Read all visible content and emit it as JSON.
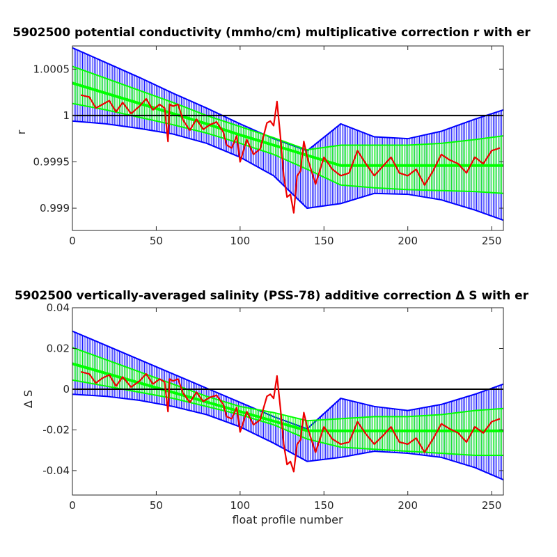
{
  "colors": {
    "outer_error": "#0000ff",
    "inner_error": "#00ff00",
    "data_line": "#ee0000",
    "reference_line": "#000000"
  },
  "chart_data": [
    {
      "type": "line",
      "title": "5902500 potential conductivity (mmho/cm) multiplicative correction r with er",
      "xlabel": "",
      "ylabel": "r",
      "xlim": [
        0,
        257
      ],
      "ylim": [
        0.99876,
        1.00075
      ],
      "xticks": [
        0,
        50,
        100,
        150,
        200,
        250
      ],
      "yticks": [
        0.999,
        0.9995,
        1,
        1.0005
      ],
      "ytick_labels": [
        "0.999",
        "0.9995",
        "1",
        "1.0005"
      ],
      "reference_value": 1,
      "fit_x": [
        0,
        20,
        40,
        60,
        80,
        100,
        120,
        140,
        160,
        180,
        200,
        220,
        240,
        257
      ],
      "fit_y": [
        1.00035,
        1.00024,
        1.00013,
        1.00002,
        0.99991,
        0.99979,
        0.99968,
        0.99957,
        0.99946,
        0.99946,
        0.99946,
        0.99946,
        0.99946,
        0.99946
      ],
      "outer_upper": [
        1.00073,
        1.00057,
        1.00041,
        1.00024,
        1.00008,
        0.99991,
        0.99975,
        0.99962,
        0.99991,
        0.99977,
        0.99975,
        0.99983,
        0.99996,
        1.00006
      ],
      "outer_lower": [
        0.99994,
        0.99991,
        0.99986,
        0.9998,
        0.9997,
        0.99955,
        0.99935,
        0.999,
        0.99905,
        0.99916,
        0.99915,
        0.99909,
        0.99898,
        0.99887
      ],
      "inner_upper": [
        1.00053,
        1.0004,
        1.00027,
        1.00014,
        1.0,
        0.99988,
        0.99976,
        0.99963,
        0.99968,
        0.99968,
        0.99968,
        0.9997,
        0.99974,
        0.99978
      ],
      "inner_lower": [
        1.00013,
        1.00006,
        0.99998,
        0.9999,
        0.99981,
        0.9997,
        0.99958,
        0.99942,
        0.99925,
        0.99922,
        0.9992,
        0.99919,
        0.99918,
        0.99916
      ],
      "series_x": [
        5,
        10,
        14,
        18,
        22,
        26,
        30,
        35,
        40,
        44,
        48,
        52,
        55,
        57,
        58,
        60,
        63,
        66,
        70,
        74,
        78,
        82,
        86,
        90,
        92,
        95,
        98,
        100,
        104,
        108,
        112,
        116,
        118,
        120,
        122,
        124,
        126,
        128,
        130,
        132,
        134,
        136,
        138,
        140,
        145,
        150,
        155,
        160,
        165,
        170,
        175,
        180,
        185,
        190,
        195,
        200,
        205,
        210,
        215,
        220,
        225,
        230,
        235,
        240,
        245,
        250,
        255
      ],
      "series_y": [
        1.00022,
        1.0002,
        1.00008,
        1.00012,
        1.00016,
        1.00004,
        1.00014,
        1.00002,
        1.0001,
        1.00018,
        1.00006,
        1.00012,
        1.00008,
        0.99972,
        1.00012,
        1.0001,
        1.00012,
        0.99995,
        0.99984,
        0.99996,
        0.99985,
        0.9999,
        0.99993,
        0.99982,
        0.99968,
        0.99965,
        0.99978,
        0.9995,
        0.99974,
        0.99958,
        0.99964,
        0.99992,
        0.99994,
        0.99989,
        1.00015,
        0.99978,
        0.99935,
        0.99912,
        0.99915,
        0.99895,
        0.99935,
        0.9994,
        0.99972,
        0.99955,
        0.99926,
        0.99955,
        0.99942,
        0.99935,
        0.99938,
        0.99962,
        0.99948,
        0.99935,
        0.99945,
        0.99955,
        0.99938,
        0.99935,
        0.99942,
        0.99925,
        0.9994,
        0.99958,
        0.99952,
        0.99948,
        0.99938,
        0.99955,
        0.99948,
        0.99962,
        0.99965
      ]
    },
    {
      "type": "line",
      "title": "5902500 vertically-averaged salinity (PSS-78) additive correction Δ S with er",
      "xlabel": "float profile number",
      "ylabel": "Δ S",
      "xlim": [
        0,
        257
      ],
      "ylim": [
        -0.052,
        0.04
      ],
      "xticks": [
        0,
        50,
        100,
        150,
        200,
        250
      ],
      "yticks": [
        -0.04,
        -0.02,
        0,
        0.02,
        0.04
      ],
      "ytick_labels": [
        "-0.04",
        "-0.02",
        "0",
        "0.02",
        "0.04"
      ],
      "reference_value": 0,
      "fit_x": [
        0,
        20,
        40,
        60,
        80,
        100,
        120,
        140,
        160,
        180,
        200,
        220,
        240,
        257
      ],
      "fit_y": [
        0.0125,
        0.0078,
        0.0031,
        -0.0016,
        -0.0063,
        -0.011,
        -0.0157,
        -0.0204,
        -0.0205,
        -0.0205,
        -0.0205,
        -0.0205,
        -0.0205,
        -0.0205
      ],
      "outer_upper": [
        0.0285,
        0.0215,
        0.0145,
        0.0075,
        0.0005,
        -0.0065,
        -0.0135,
        -0.0195,
        -0.0045,
        -0.0085,
        -0.0105,
        -0.0075,
        -0.0025,
        0.0025
      ],
      "outer_lower": [
        -0.0025,
        -0.0035,
        -0.0055,
        -0.0085,
        -0.0125,
        -0.0185,
        -0.0265,
        -0.0355,
        -0.0335,
        -0.0305,
        -0.0315,
        -0.0335,
        -0.0385,
        -0.0445
      ],
      "inner_upper": [
        0.0205,
        0.0145,
        0.0085,
        0.0025,
        -0.0035,
        -0.0085,
        -0.0115,
        -0.0155,
        -0.0145,
        -0.0135,
        -0.0135,
        -0.0125,
        -0.0105,
        -0.0095
      ],
      "inner_lower": [
        0.0045,
        0.0015,
        -0.0015,
        -0.0045,
        -0.0085,
        -0.0125,
        -0.0175,
        -0.0245,
        -0.0285,
        -0.0295,
        -0.0305,
        -0.0315,
        -0.0325,
        -0.0325
      ],
      "series_x": [
        5,
        10,
        14,
        18,
        22,
        26,
        30,
        35,
        40,
        44,
        48,
        52,
        55,
        57,
        58,
        60,
        63,
        66,
        70,
        74,
        78,
        82,
        86,
        90,
        92,
        95,
        98,
        100,
        104,
        108,
        112,
        116,
        118,
        120,
        122,
        124,
        126,
        128,
        130,
        132,
        134,
        136,
        138,
        140,
        145,
        150,
        155,
        160,
        165,
        170,
        175,
        180,
        185,
        190,
        195,
        200,
        205,
        210,
        215,
        220,
        225,
        230,
        235,
        240,
        245,
        250,
        255
      ],
      "series_y": [
        0.0085,
        0.0075,
        0.003,
        0.0055,
        0.007,
        0.0015,
        0.006,
        0.001,
        0.004,
        0.0075,
        0.0025,
        0.005,
        0.0035,
        -0.011,
        0.005,
        0.004,
        0.005,
        -0.002,
        -0.0065,
        -0.0015,
        -0.006,
        -0.004,
        -0.003,
        -0.0075,
        -0.0135,
        -0.0145,
        -0.009,
        -0.021,
        -0.011,
        -0.0175,
        -0.015,
        -0.0035,
        -0.0025,
        -0.0045,
        0.0065,
        -0.009,
        -0.027,
        -0.037,
        -0.0355,
        -0.0405,
        -0.027,
        -0.025,
        -0.0115,
        -0.0185,
        -0.031,
        -0.0185,
        -0.0245,
        -0.027,
        -0.026,
        -0.016,
        -0.022,
        -0.027,
        -0.023,
        -0.0185,
        -0.026,
        -0.027,
        -0.024,
        -0.031,
        -0.0245,
        -0.017,
        -0.0195,
        -0.0215,
        -0.026,
        -0.0185,
        -0.0215,
        -0.016,
        -0.0145
      ]
    }
  ]
}
